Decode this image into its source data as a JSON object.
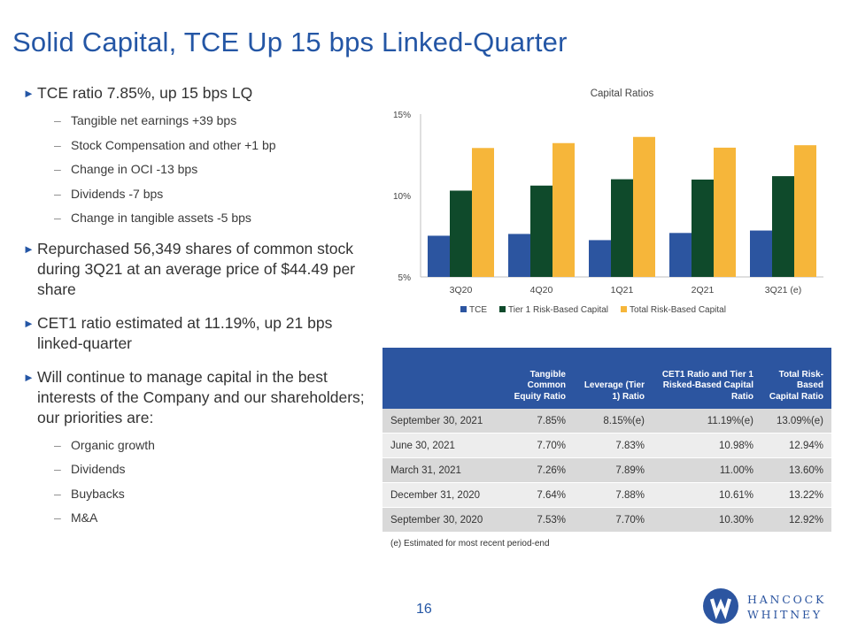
{
  "slide": {
    "title": "Solid Capital, TCE Up 15 bps Linked-Quarter",
    "page_number": "16"
  },
  "bullets": [
    {
      "text": "TCE ratio 7.85%, up 15 bps LQ",
      "subs": [
        "Tangible net earnings +39 bps",
        "Stock Compensation and other +1 bp",
        "Change in OCI -13 bps",
        "Dividends -7 bps",
        "Change in tangible assets -5 bps"
      ]
    },
    {
      "text": "Repurchased 56,349 shares of common stock during 3Q21 at an average price of $44.49 per share",
      "subs": []
    },
    {
      "text": "CET1 ratio estimated at 11.19%, up 21 bps linked-quarter",
      "subs": []
    },
    {
      "text": "Will continue to manage capital in the best interests of the Company and our shareholders; our priorities are:",
      "subs": [
        "Organic growth",
        "Dividends",
        "Buybacks",
        "M&A"
      ]
    }
  ],
  "chart_data": {
    "type": "bar",
    "title": "Capital Ratios",
    "categories": [
      "3Q20",
      "4Q20",
      "1Q21",
      "2Q21",
      "3Q21 (e)"
    ],
    "series": [
      {
        "name": "TCE",
        "color": "#2c55a0",
        "values": [
          7.53,
          7.64,
          7.26,
          7.7,
          7.85
        ]
      },
      {
        "name": "Tier 1 Risk-Based Capital",
        "color": "#0f4a2b",
        "values": [
          10.3,
          10.61,
          11.0,
          10.98,
          11.19
        ]
      },
      {
        "name": "Total Risk-Based Capital",
        "color": "#f6b63a",
        "values": [
          12.92,
          13.22,
          13.6,
          12.94,
          13.09
        ]
      }
    ],
    "y_ticks": [
      "15%",
      "10%",
      "5%"
    ],
    "ylim": [
      5,
      15
    ],
    "grid": false,
    "legend": "bottom"
  },
  "table": {
    "headers": [
      "",
      "Tangible Common Equity Ratio",
      "Leverage (Tier 1) Ratio",
      "CET1 Ratio and Tier 1 Risked-Based Capital Ratio",
      "Total Risk-Based Capital Ratio"
    ],
    "rows": [
      [
        "September 30, 2021",
        "7.85%",
        "8.15%(e)",
        "11.19%(e)",
        "13.09%(e)"
      ],
      [
        "June 30, 2021",
        "7.70%",
        "7.83%",
        "10.98%",
        "12.94%"
      ],
      [
        "March 31, 2021",
        "7.26%",
        "7.89%",
        "11.00%",
        "13.60%"
      ],
      [
        "December 31, 2020",
        "7.64%",
        "7.88%",
        "10.61%",
        "13.22%"
      ],
      [
        "September 30, 2020",
        "7.53%",
        "7.70%",
        "10.30%",
        "12.92%"
      ]
    ],
    "footnote": "(e) Estimated for most recent period-end"
  },
  "logo": {
    "line1": "HANCOCK",
    "line2": "WHITNEY"
  },
  "colors": {
    "brand_blue": "#2456a5",
    "table_header": "#2c55a0"
  }
}
